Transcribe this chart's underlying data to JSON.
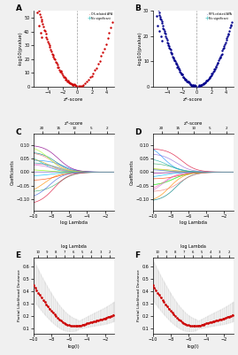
{
  "figsize": [
    2.69,
    4.01
  ],
  "dpi": 100,
  "bg_color": "#f0f0f0",
  "panel_bg": "#ffffff",
  "panel_A": {
    "label": "A",
    "xlabel": "z*-score",
    "ylabel": "-log10(pvalue)",
    "xlim": [
      -6,
      5
    ],
    "ylim": [
      0,
      55
    ],
    "yticks": [
      0,
      10,
      20,
      30,
      40,
      50
    ],
    "xticks": [
      -4,
      -2,
      0,
      2,
      4
    ],
    "sig_color": "#cc0000",
    "nonsig_color": "#66cccc",
    "sig_label": "OS-related APA",
    "nonsig_label": "No significant"
  },
  "panel_B": {
    "label": "B",
    "xlabel": "z*-score",
    "ylabel": "-log10(pvalue)",
    "xlim": [
      -6,
      5
    ],
    "ylim": [
      0,
      30
    ],
    "yticks": [
      0,
      10,
      20,
      30
    ],
    "xticks": [
      -4,
      -2,
      0,
      2,
      4
    ],
    "sig_color": "#00008b",
    "nonsig_color": "#66cccc",
    "sig_label": "RFS-related APA",
    "nonsig_label": "No significant"
  },
  "panel_C": {
    "label": "C",
    "xlabel": "log Lambda",
    "ylabel": "Coefficients",
    "top_xlabel": "z*-score",
    "top_xticks": [
      "20",
      "15",
      "10",
      "5",
      "2"
    ],
    "top_xvals": [
      -9.0,
      -7.2,
      -5.4,
      -3.6,
      -1.8
    ],
    "xlim": [
      -10,
      -1
    ],
    "ylim": [
      -0.14,
      0.14
    ],
    "n_lines": 18
  },
  "panel_D": {
    "label": "D",
    "xlabel": "log Lambda",
    "ylabel": "Coefficients",
    "top_xlabel": "z*-score",
    "top_xticks": [
      "20",
      "15",
      "10",
      "5",
      "2"
    ],
    "top_xvals": [
      -9.0,
      -7.2,
      -5.4,
      -3.6,
      -1.8
    ],
    "xlim": [
      -10,
      -1
    ],
    "ylim": [
      -0.14,
      0.14
    ],
    "n_lines": 18
  },
  "panel_E": {
    "label": "E",
    "xlabel": "log(l)",
    "ylabel": "Partial Likelihood Deviance",
    "top_xlabel": "log Lambda",
    "top_xticks": [
      "10",
      "9",
      "8",
      "7",
      "6",
      "5",
      "4",
      "3",
      "2"
    ],
    "top_xvals": [
      -9.5,
      -8.5,
      -7.5,
      -6.5,
      -5.5,
      -4.5,
      -3.5,
      -2.5,
      -1.5
    ],
    "xlim": [
      -10,
      -1
    ],
    "ylim": [
      0.1,
      0.5
    ],
    "curve_color": "#cc0000",
    "shade_color": "#d3d3d3"
  },
  "panel_F": {
    "label": "F",
    "xlabel": "log(l)",
    "ylabel": "Partial Likelihood Deviance",
    "top_xlabel": "log Lambda",
    "top_xticks": [
      "10",
      "9",
      "8",
      "7",
      "6",
      "5",
      "4",
      "3",
      "2"
    ],
    "top_xvals": [
      -9.5,
      -8.5,
      -7.5,
      -6.5,
      -5.5,
      -4.5,
      -3.5,
      -2.5,
      -1.5
    ],
    "xlim": [
      -10,
      -1
    ],
    "ylim": [
      0.1,
      0.5
    ],
    "curve_color": "#cc0000",
    "shade_color": "#d3d3d3"
  },
  "lasso_line_colors": [
    "#00ced1",
    "#ff69b4",
    "#9370db",
    "#3cb371",
    "#ff8c00",
    "#1e90ff",
    "#dc143c",
    "#008080",
    "#daa520",
    "#8b008b",
    "#7cfc00",
    "#ff4500",
    "#00bfff",
    "#da70d6",
    "#20b2aa",
    "#f08080",
    "#adff2f",
    "#4169e1"
  ]
}
